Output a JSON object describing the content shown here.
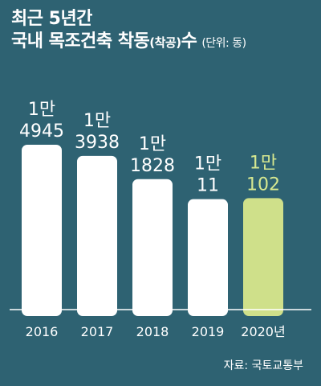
{
  "title_line1": "최근 5년간",
  "title_line2_main": "국내 목조건축 착동",
  "title_line2_paren": "(착공)",
  "title_line2_tail": "수",
  "unit": "(단위: 동)",
  "source": "자료: 국토교통부",
  "colors": {
    "background": "#2e6272",
    "bar": "#ffffff",
    "highlight_bar": "#cfe08a",
    "highlight_text": "#d6e890",
    "text": "#ffffff"
  },
  "chart_data": {
    "type": "bar",
    "categories": [
      "2016",
      "2017",
      "2018",
      "2019",
      "2020년"
    ],
    "values": [
      14945,
      13938,
      11828,
      10011,
      10102
    ],
    "value_labels": [
      [
        "1만",
        "4945"
      ],
      [
        "1만",
        "3938"
      ],
      [
        "1만",
        "1828"
      ],
      [
        "1만",
        "11"
      ],
      [
        "1만",
        "102"
      ]
    ],
    "highlight_index": 4,
    "title": "최근 5년간 국내 목조건축 착동(착공)수",
    "unit": "동"
  }
}
